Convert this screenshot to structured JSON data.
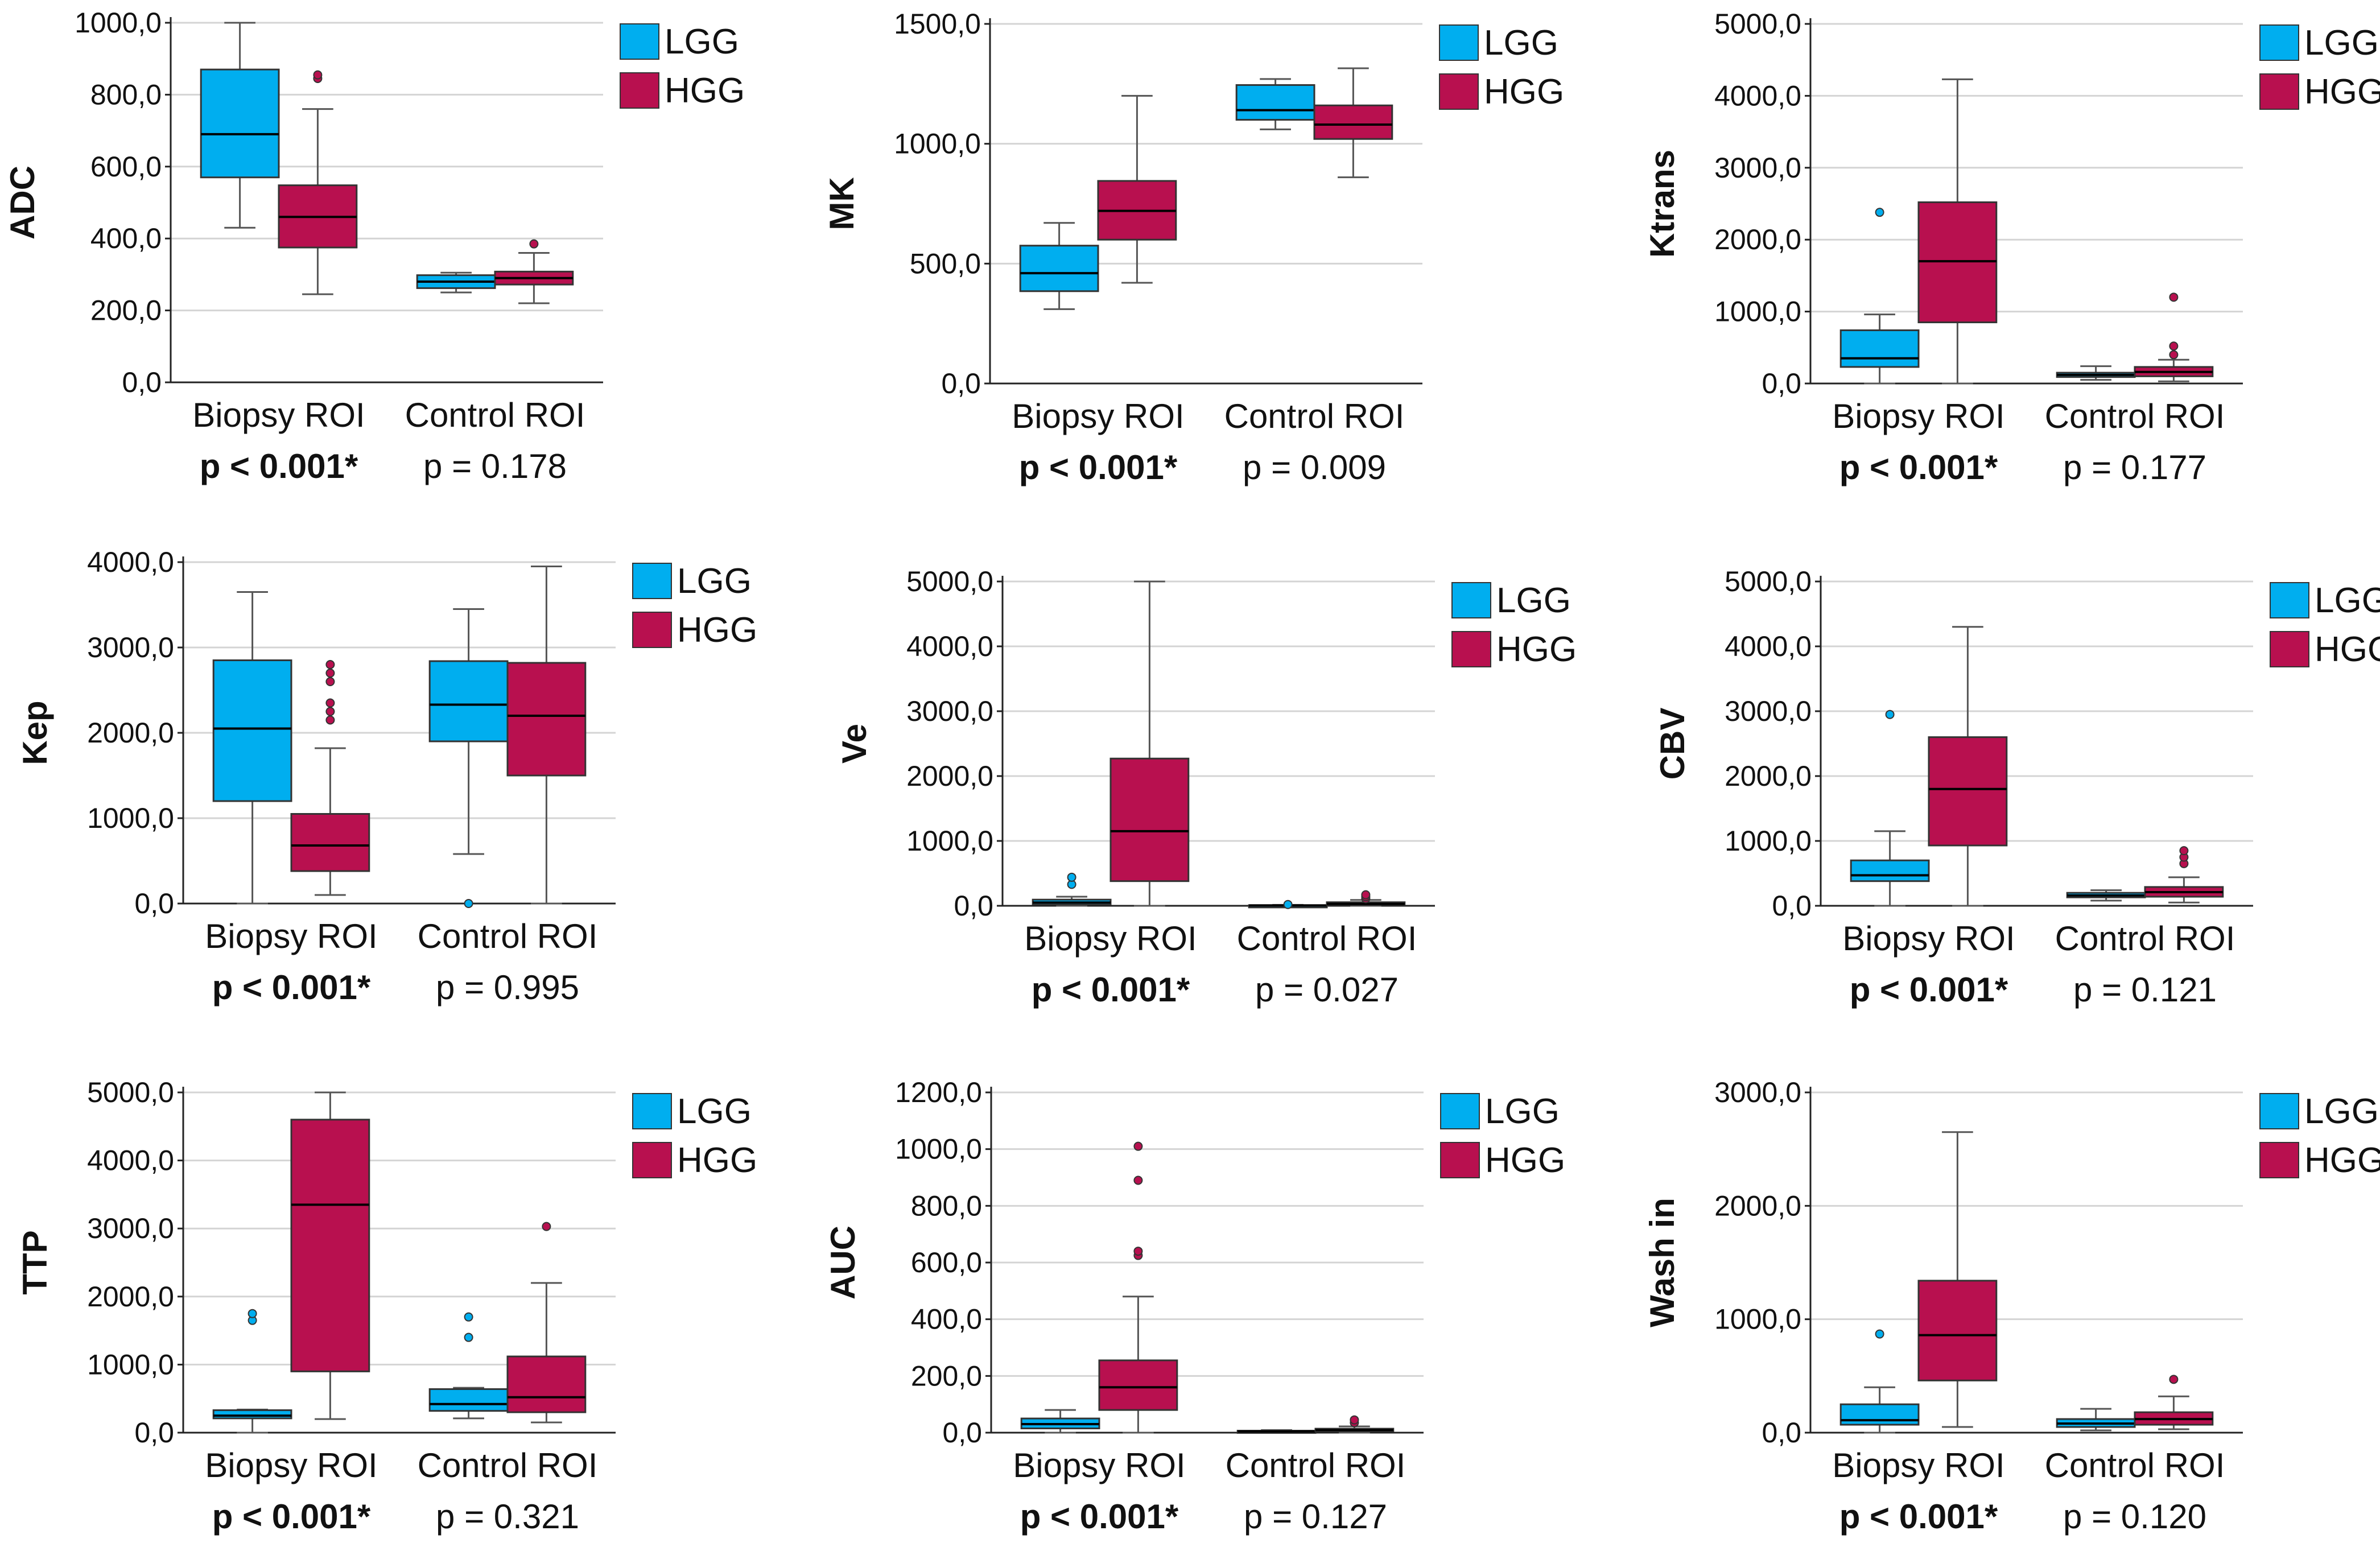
{
  "figure": {
    "legend": [
      {
        "name": "LGG",
        "color": "#00aeef"
      },
      {
        "name": "HGG",
        "color": "#b8104f"
      }
    ],
    "categories": [
      "Biopsy ROI",
      "Control ROI"
    ],
    "colors": {
      "lgg": "#00aeef",
      "hgg": "#b8104f",
      "grid": "#d4d4d4",
      "axis": "#222222",
      "whisker": "#555555"
    }
  },
  "chart_data": [
    {
      "type": "box",
      "ylabel": "ADC",
      "ylim": [
        0,
        1000
      ],
      "yticks": [
        0,
        200,
        400,
        600,
        800,
        1000
      ],
      "tick_labels": [
        "0,0",
        "200,0",
        "400,0",
        "600,0",
        "800,0",
        "1000,0"
      ],
      "categories": [
        "Biopsy ROI",
        "Control ROI"
      ],
      "pvalues": [
        {
          "text": "p < 0.001*",
          "significant": true
        },
        {
          "text": "p = 0.178",
          "significant": false
        }
      ],
      "series": [
        {
          "name": "LGG",
          "boxes": [
            {
              "min": 430,
              "q1": 570,
              "median": 690,
              "q3": 870,
              "max": 1000,
              "outliers": []
            },
            {
              "min": 250,
              "q1": 262,
              "median": 280,
              "q3": 298,
              "max": 305,
              "outliers": []
            }
          ]
        },
        {
          "name": "HGG",
          "boxes": [
            {
              "min": 245,
              "q1": 375,
              "median": 460,
              "q3": 548,
              "max": 760,
              "outliers": [
                845,
                855
              ]
            },
            {
              "min": 220,
              "q1": 272,
              "median": 290,
              "q3": 308,
              "max": 360,
              "outliers": [
                385
              ]
            }
          ]
        }
      ]
    },
    {
      "type": "box",
      "ylabel": "MK",
      "ylim": [
        0,
        1500
      ],
      "yticks": [
        0,
        500,
        1000,
        1500
      ],
      "tick_labels": [
        "0,0",
        "500,0",
        "1000,0",
        "1500,0"
      ],
      "categories": [
        "Biopsy ROI",
        "Control ROI"
      ],
      "pvalues": [
        {
          "text": "p < 0.001*",
          "significant": true
        },
        {
          "text": "p = 0.009",
          "significant": false
        }
      ],
      "series": [
        {
          "name": "LGG",
          "boxes": [
            {
              "min": 310,
              "q1": 385,
              "median": 460,
              "q3": 575,
              "max": 670,
              "outliers": []
            },
            {
              "min": 1060,
              "q1": 1100,
              "median": 1140,
              "q3": 1245,
              "max": 1270,
              "outliers": []
            }
          ]
        },
        {
          "name": "HGG",
          "boxes": [
            {
              "min": 420,
              "q1": 600,
              "median": 720,
              "q3": 845,
              "max": 1200,
              "outliers": []
            },
            {
              "min": 860,
              "q1": 1020,
              "median": 1080,
              "q3": 1160,
              "max": 1315,
              "outliers": []
            }
          ]
        }
      ]
    },
    {
      "type": "box",
      "ylabel": "Ktrans",
      "ylim": [
        0,
        5000
      ],
      "yticks": [
        0,
        1000,
        2000,
        3000,
        4000,
        5000
      ],
      "tick_labels": [
        "0,0",
        "1000,0",
        "2000,0",
        "3000,0",
        "4000,0",
        "5000,0"
      ],
      "categories": [
        "Biopsy ROI",
        "Control ROI"
      ],
      "pvalues": [
        {
          "text": "p < 0.001*",
          "significant": true
        },
        {
          "text": "p = 0.177",
          "significant": false
        }
      ],
      "series": [
        {
          "name": "LGG",
          "boxes": [
            {
              "min": 0,
              "q1": 230,
              "median": 350,
              "q3": 740,
              "max": 960,
              "outliers": [
                2380
              ]
            },
            {
              "min": 50,
              "q1": 90,
              "median": 120,
              "q3": 150,
              "max": 240,
              "outliers": []
            }
          ]
        },
        {
          "name": "HGG",
          "boxes": [
            {
              "min": 0,
              "q1": 850,
              "median": 1700,
              "q3": 2520,
              "max": 4230,
              "outliers": []
            },
            {
              "min": 30,
              "q1": 100,
              "median": 160,
              "q3": 230,
              "max": 330,
              "outliers": [
                400,
                520,
                1200
              ]
            }
          ]
        }
      ]
    },
    {
      "type": "box",
      "ylabel": "Kep",
      "ylim": [
        0,
        4000
      ],
      "yticks": [
        0,
        1000,
        2000,
        3000,
        4000
      ],
      "tick_labels": [
        "0,0",
        "1000,0",
        "2000,0",
        "3000,0",
        "4000,0"
      ],
      "categories": [
        "Biopsy ROI",
        "Control ROI"
      ],
      "pvalues": [
        {
          "text": "p < 0.001*",
          "significant": true
        },
        {
          "text": "p = 0.995",
          "significant": false
        }
      ],
      "series": [
        {
          "name": "LGG",
          "boxes": [
            {
              "min": 0,
              "q1": 1200,
              "median": 2050,
              "q3": 2850,
              "max": 3650,
              "outliers": []
            },
            {
              "min": 580,
              "q1": 1900,
              "median": 2330,
              "q3": 2840,
              "max": 3450,
              "outliers": [
                0
              ]
            }
          ]
        },
        {
          "name": "HGG",
          "boxes": [
            {
              "min": 100,
              "q1": 380,
              "median": 680,
              "q3": 1050,
              "max": 1820,
              "outliers": [
                2150,
                2250,
                2350,
                2600,
                2700,
                2800
              ]
            },
            {
              "min": 0,
              "q1": 1500,
              "median": 2200,
              "q3": 2820,
              "max": 3950,
              "outliers": []
            }
          ]
        }
      ]
    },
    {
      "type": "box",
      "ylabel": "Ve",
      "ylim": [
        0,
        5000
      ],
      "yticks": [
        0,
        1000,
        2000,
        3000,
        4000,
        5000
      ],
      "tick_labels": [
        "0,0",
        "1000,0",
        "2000,0",
        "3000,0",
        "4000,0",
        "5000,0"
      ],
      "categories": [
        "Biopsy ROI",
        "Control ROI"
      ],
      "pvalues": [
        {
          "text": "p < 0.001*",
          "significant": true
        },
        {
          "text": "p = 0.027",
          "significant": false
        }
      ],
      "series": [
        {
          "name": "LGG",
          "boxes": [
            {
              "min": 0,
              "q1": 20,
              "median": 50,
              "q3": 95,
              "max": 140,
              "outliers": [
                330,
                440
              ]
            },
            {
              "min": 0,
              "q1": 3,
              "median": 6,
              "q3": 10,
              "max": 14,
              "outliers": [
                20
              ]
            }
          ]
        },
        {
          "name": "HGG",
          "boxes": [
            {
              "min": 0,
              "q1": 380,
              "median": 1150,
              "q3": 2270,
              "max": 5000,
              "outliers": []
            },
            {
              "min": 0,
              "q1": 15,
              "median": 30,
              "q3": 55,
              "max": 90,
              "outliers": [
                110,
                140,
                170
              ]
            }
          ]
        }
      ]
    },
    {
      "type": "box",
      "ylabel": "CBV",
      "ylim": [
        0,
        5000
      ],
      "yticks": [
        0,
        1000,
        2000,
        3000,
        4000,
        5000
      ],
      "tick_labels": [
        "0,0",
        "1000,0",
        "2000,0",
        "3000,0",
        "4000,0",
        "5000,0"
      ],
      "categories": [
        "Biopsy ROI",
        "Control ROI"
      ],
      "pvalues": [
        {
          "text": "p < 0.001*",
          "significant": true
        },
        {
          "text": "p = 0.121",
          "significant": false
        }
      ],
      "series": [
        {
          "name": "LGG",
          "boxes": [
            {
              "min": 0,
              "q1": 380,
              "median": 470,
              "q3": 700,
              "max": 1150,
              "outliers": [
                2950
              ]
            },
            {
              "min": 80,
              "q1": 130,
              "median": 160,
              "q3": 200,
              "max": 240,
              "outliers": []
            }
          ]
        },
        {
          "name": "HGG",
          "boxes": [
            {
              "min": 0,
              "q1": 930,
              "median": 1800,
              "q3": 2600,
              "max": 4300,
              "outliers": []
            },
            {
              "min": 50,
              "q1": 140,
              "median": 210,
              "q3": 290,
              "max": 440,
              "outliers": [
                650,
                750,
                850
              ]
            }
          ]
        }
      ]
    },
    {
      "type": "box",
      "ylabel": "TTP",
      "ylim": [
        0,
        5000
      ],
      "yticks": [
        0,
        1000,
        2000,
        3000,
        4000,
        5000
      ],
      "tick_labels": [
        "0,0",
        "1000,0",
        "2000,0",
        "3000,0",
        "4000,0",
        "5000,0"
      ],
      "categories": [
        "Biopsy ROI",
        "Control ROI"
      ],
      "pvalues": [
        {
          "text": "p < 0.001*",
          "significant": true
        },
        {
          "text": "p = 0.321",
          "significant": false
        }
      ],
      "series": [
        {
          "name": "LGG",
          "boxes": [
            {
              "min": 0,
              "q1": 210,
              "median": 250,
              "q3": 330,
              "max": 340,
              "outliers": [
                1650,
                1750
              ]
            },
            {
              "min": 210,
              "q1": 320,
              "median": 420,
              "q3": 640,
              "max": 660,
              "outliers": [
                1400,
                1700
              ]
            }
          ]
        },
        {
          "name": "HGG",
          "boxes": [
            {
              "min": 200,
              "q1": 900,
              "median": 3350,
              "q3": 4600,
              "max": 5000,
              "outliers": []
            },
            {
              "min": 150,
              "q1": 300,
              "median": 520,
              "q3": 1120,
              "max": 2200,
              "outliers": [
                3030
              ]
            }
          ]
        }
      ]
    },
    {
      "type": "box",
      "ylabel": "AUC",
      "ylim": [
        0,
        1200
      ],
      "yticks": [
        0,
        200,
        400,
        600,
        800,
        1000,
        1200
      ],
      "tick_labels": [
        "0,0",
        "200,0",
        "400,0",
        "600,0",
        "800,0",
        "1000,0",
        "1200,0"
      ],
      "categories": [
        "Biopsy ROI",
        "Control ROI"
      ],
      "pvalues": [
        {
          "text": "p < 0.001*",
          "significant": true
        },
        {
          "text": "p = 0.127",
          "significant": false
        }
      ],
      "series": [
        {
          "name": "LGG",
          "boxes": [
            {
              "min": 0,
              "q1": 15,
              "median": 30,
              "q3": 50,
              "max": 80,
              "outliers": []
            },
            {
              "min": 0,
              "q1": 2,
              "median": 4,
              "q3": 7,
              "max": 9,
              "outliers": []
            }
          ]
        },
        {
          "name": "HGG",
          "boxes": [
            {
              "min": 0,
              "q1": 80,
              "median": 160,
              "q3": 255,
              "max": 480,
              "outliers": [
                625,
                640,
                890,
                1010
              ]
            },
            {
              "min": 0,
              "q1": 5,
              "median": 9,
              "q3": 14,
              "max": 22,
              "outliers": [
                35,
                45
              ]
            }
          ]
        }
      ]
    },
    {
      "type": "box",
      "ylabel": "Wash in",
      "ylim": [
        0,
        3000
      ],
      "yticks": [
        0,
        1000,
        2000,
        3000
      ],
      "tick_labels": [
        "0,0",
        "1000,0",
        "2000,0",
        "3000,0"
      ],
      "categories": [
        "Biopsy ROI",
        "Control ROI"
      ],
      "pvalues": [
        {
          "text": "p < 0.001*",
          "significant": true
        },
        {
          "text": "p = 0.120",
          "significant": false
        }
      ],
      "series": [
        {
          "name": "LGG",
          "boxes": [
            {
              "min": 0,
              "q1": 70,
              "median": 110,
              "q3": 250,
              "max": 400,
              "outliers": [
                870
              ]
            },
            {
              "min": 20,
              "q1": 50,
              "median": 80,
              "q3": 120,
              "max": 210,
              "outliers": []
            }
          ]
        },
        {
          "name": "HGG",
          "boxes": [
            {
              "min": 50,
              "q1": 460,
              "median": 860,
              "q3": 1340,
              "max": 2650,
              "outliers": []
            },
            {
              "min": 30,
              "q1": 70,
              "median": 120,
              "q3": 180,
              "max": 320,
              "outliers": [
                470
              ]
            }
          ]
        }
      ]
    }
  ]
}
